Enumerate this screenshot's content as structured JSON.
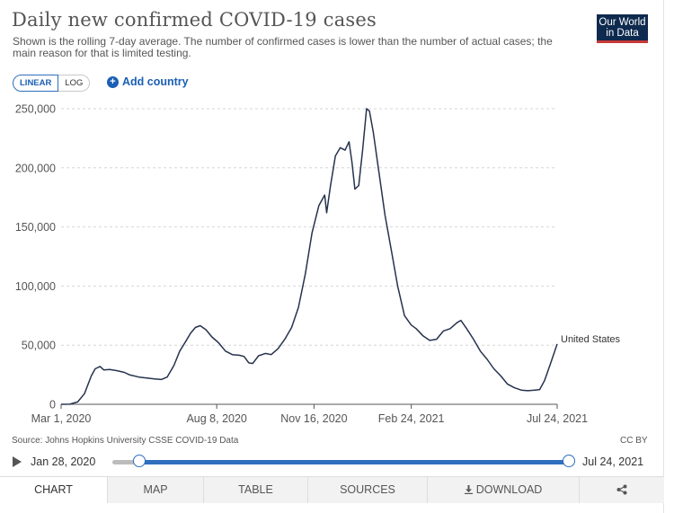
{
  "header": {
    "title": "Daily new confirmed COVID-19 cases",
    "subtitle": "Shown is the rolling 7-day average. The number of confirmed cases is lower than the number of actual cases; the main reason for that is limited testing.",
    "logo_line1": "Our World",
    "logo_line2": "in Data",
    "logo_colors": {
      "background": "#0e2a4e",
      "stripe": "#c83a3a"
    }
  },
  "controls": {
    "linear_label": "LINEAR",
    "log_label": "LOG",
    "selected_scale": "LINEAR",
    "add_country_label": "Add country"
  },
  "chart_data": {
    "type": "line",
    "y_ticks": [
      "250,000",
      "200,000",
      "150,000",
      "100,000",
      "50,000",
      "0"
    ],
    "y_tick_values": [
      250000,
      200000,
      150000,
      100000,
      50000,
      0
    ],
    "x_ticks": [
      "Mar 1, 2020",
      "Aug 8, 2020",
      "Nov 16, 2020",
      "Feb 24, 2021",
      "Jul 24, 2021"
    ],
    "x_tick_dates": [
      "2020-03-01",
      "2020-08-08",
      "2020-11-16",
      "2021-02-24",
      "2021-07-24"
    ],
    "ylim": [
      0,
      250000
    ],
    "grid": "horizontal dashed",
    "series": [
      {
        "name": "United States",
        "color": "#26334d",
        "points": [
          [
            "2020-03-01",
            10
          ],
          [
            "2020-03-10",
            100
          ],
          [
            "2020-03-18",
            2000
          ],
          [
            "2020-03-25",
            9000
          ],
          [
            "2020-04-01",
            24000
          ],
          [
            "2020-04-05",
            30000
          ],
          [
            "2020-04-10",
            32000
          ],
          [
            "2020-04-14",
            29000
          ],
          [
            "2020-04-20",
            29500
          ],
          [
            "2020-04-27",
            28500
          ],
          [
            "2020-05-05",
            27000
          ],
          [
            "2020-05-10",
            25000
          ],
          [
            "2020-05-20",
            23000
          ],
          [
            "2020-05-30",
            22000
          ],
          [
            "2020-06-05",
            21500
          ],
          [
            "2020-06-12",
            21000
          ],
          [
            "2020-06-18",
            23000
          ],
          [
            "2020-06-25",
            33000
          ],
          [
            "2020-07-01",
            45000
          ],
          [
            "2020-07-07",
            53000
          ],
          [
            "2020-07-12",
            60000
          ],
          [
            "2020-07-17",
            65000
          ],
          [
            "2020-07-22",
            66500
          ],
          [
            "2020-07-28",
            63000
          ],
          [
            "2020-08-03",
            57000
          ],
          [
            "2020-08-10",
            52000
          ],
          [
            "2020-08-17",
            45000
          ],
          [
            "2020-08-24",
            42000
          ],
          [
            "2020-08-31",
            41500
          ],
          [
            "2020-09-05",
            40500
          ],
          [
            "2020-09-10",
            35000
          ],
          [
            "2020-09-14",
            34500
          ],
          [
            "2020-09-20",
            41000
          ],
          [
            "2020-09-27",
            43000
          ],
          [
            "2020-10-03",
            42000
          ],
          [
            "2020-10-10",
            47000
          ],
          [
            "2020-10-17",
            55000
          ],
          [
            "2020-10-24",
            65000
          ],
          [
            "2020-10-31",
            82000
          ],
          [
            "2020-11-07",
            110000
          ],
          [
            "2020-11-14",
            145000
          ],
          [
            "2020-11-21",
            168000
          ],
          [
            "2020-11-27",
            177000
          ],
          [
            "2020-11-29",
            162000
          ],
          [
            "2020-12-03",
            185000
          ],
          [
            "2020-12-08",
            210000
          ],
          [
            "2020-12-13",
            217000
          ],
          [
            "2020-12-18",
            215000
          ],
          [
            "2020-12-22",
            222000
          ],
          [
            "2020-12-25",
            205000
          ],
          [
            "2020-12-28",
            182000
          ],
          [
            "2021-01-01",
            185000
          ],
          [
            "2021-01-05",
            215000
          ],
          [
            "2021-01-09",
            250000
          ],
          [
            "2021-01-12",
            248000
          ],
          [
            "2021-01-16",
            230000
          ],
          [
            "2021-01-22",
            195000
          ],
          [
            "2021-01-28",
            160000
          ],
          [
            "2021-02-04",
            128000
          ],
          [
            "2021-02-10",
            100000
          ],
          [
            "2021-02-17",
            75000
          ],
          [
            "2021-02-24",
            67000
          ],
          [
            "2021-03-01",
            64000
          ],
          [
            "2021-03-08",
            58000
          ],
          [
            "2021-03-15",
            54000
          ],
          [
            "2021-03-22",
            55000
          ],
          [
            "2021-03-29",
            62000
          ],
          [
            "2021-04-05",
            64000
          ],
          [
            "2021-04-12",
            69000
          ],
          [
            "2021-04-16",
            71000
          ],
          [
            "2021-04-22",
            64000
          ],
          [
            "2021-04-29",
            55000
          ],
          [
            "2021-05-06",
            45000
          ],
          [
            "2021-05-13",
            38000
          ],
          [
            "2021-05-20",
            30000
          ],
          [
            "2021-05-27",
            24000
          ],
          [
            "2021-06-03",
            17000
          ],
          [
            "2021-06-10",
            14000
          ],
          [
            "2021-06-17",
            12000
          ],
          [
            "2021-06-24",
            11500
          ],
          [
            "2021-07-01",
            12000
          ],
          [
            "2021-07-06",
            12500
          ],
          [
            "2021-07-11",
            20000
          ],
          [
            "2021-07-17",
            34000
          ],
          [
            "2021-07-24",
            51000
          ]
        ]
      }
    ]
  },
  "footer": {
    "source": "Source: Johns Hopkins University CSSE COVID-19 Data",
    "license": "CC BY"
  },
  "timeline": {
    "start_label": "Jan 28, 2020",
    "end_label": "Jul 24, 2021",
    "accent_color": "#2f6fbd"
  },
  "tabs": [
    {
      "label": "CHART",
      "active": true
    },
    {
      "label": "MAP",
      "active": false
    },
    {
      "label": "TABLE",
      "active": false
    },
    {
      "label": "SOURCES",
      "active": false
    },
    {
      "label": "DOWNLOAD",
      "active": false,
      "icon": "download-icon"
    },
    {
      "label": "",
      "active": false,
      "icon": "share-icon"
    }
  ]
}
